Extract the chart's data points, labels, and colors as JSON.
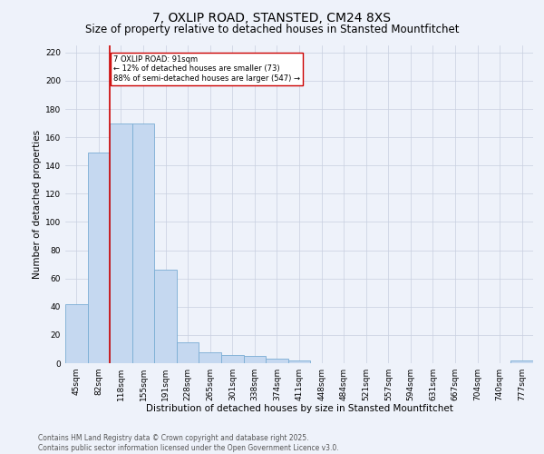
{
  "title": "7, OXLIP ROAD, STANSTED, CM24 8XS",
  "subtitle": "Size of property relative to detached houses in Stansted Mountfitchet",
  "xlabel": "Distribution of detached houses by size in Stansted Mountfitchet",
  "ylabel": "Number of detached properties",
  "categories": [
    "45sqm",
    "82sqm",
    "118sqm",
    "155sqm",
    "191sqm",
    "228sqm",
    "265sqm",
    "301sqm",
    "338sqm",
    "374sqm",
    "411sqm",
    "448sqm",
    "484sqm",
    "521sqm",
    "557sqm",
    "594sqm",
    "631sqm",
    "667sqm",
    "704sqm",
    "740sqm",
    "777sqm"
  ],
  "values": [
    42,
    149,
    170,
    170,
    66,
    15,
    8,
    6,
    5,
    3,
    2,
    0,
    0,
    0,
    0,
    0,
    0,
    0,
    0,
    0,
    2
  ],
  "bar_color": "#c5d8f0",
  "bar_edge_color": "#7aadd4",
  "red_line_x": 1.5,
  "annotation_line1": "7 OXLIP ROAD: 91sqm",
  "annotation_line2": "← 12% of detached houses are smaller (73)",
  "annotation_line3": "88% of semi-detached houses are larger (547) →",
  "annotation_box_color": "#ffffff",
  "annotation_box_edge": "#cc0000",
  "annotation_text_color": "#000000",
  "red_line_color": "#cc0000",
  "ylim": [
    0,
    225
  ],
  "yticks": [
    0,
    20,
    40,
    60,
    80,
    100,
    120,
    140,
    160,
    180,
    200,
    220
  ],
  "footnote": "Contains HM Land Registry data © Crown copyright and database right 2025.\nContains public sector information licensed under the Open Government Licence v3.0.",
  "bg_color": "#eef2fa",
  "grid_color": "#c8cfe0",
  "title_fontsize": 10,
  "subtitle_fontsize": 8.5,
  "axis_label_fontsize": 7.5,
  "tick_fontsize": 6.5,
  "footnote_fontsize": 5.5
}
